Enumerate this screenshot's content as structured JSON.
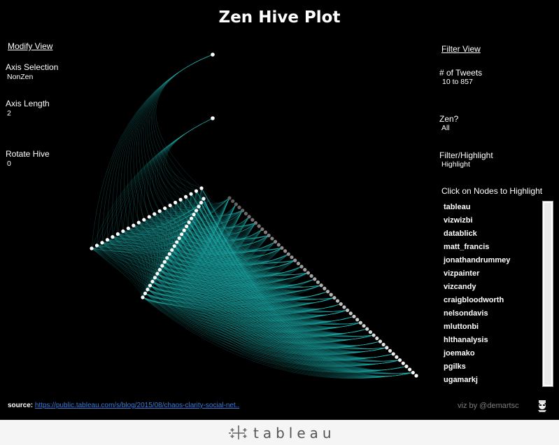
{
  "title": "Zen Hive Plot",
  "modify_view": {
    "heading": "Modify View",
    "axis_selection": {
      "label": "Axis Selection",
      "value": "NonZen"
    },
    "axis_length": {
      "label": "Axis Length",
      "value": "2"
    },
    "rotate_hive": {
      "label": "Rotate Hive",
      "value": "0"
    }
  },
  "filter_view": {
    "heading": "Filter View",
    "tweets": {
      "label": "# of Tweets",
      "value": "10 to 857"
    },
    "zen": {
      "label": "Zen?",
      "value": "All"
    },
    "filter_highlight": {
      "label": "Filter/Highlight",
      "value": "Highlight"
    }
  },
  "nodes_panel": {
    "title": "Click on Nodes to Highlight",
    "items": [
      "tableau",
      "vizwizbi",
      "datablick",
      "matt_francis",
      "jonathandrummey",
      "vizpainter",
      "vizcandy",
      "craigbloodworth",
      "nelsondavis",
      "mluttonbi",
      "hlthanalysis",
      "joemako",
      "pgilks",
      "ugamarkj"
    ]
  },
  "source": {
    "label": "source:",
    "link": "https://public.tableau.com/s/blog/2015/08/chaos-clarity-social-net.."
  },
  "credit": "viz by @demartsc",
  "footer": {
    "brand": "tableau"
  },
  "colors": {
    "edge": "#1fb7b4",
    "node": "#ffffff",
    "background": "#000000"
  }
}
